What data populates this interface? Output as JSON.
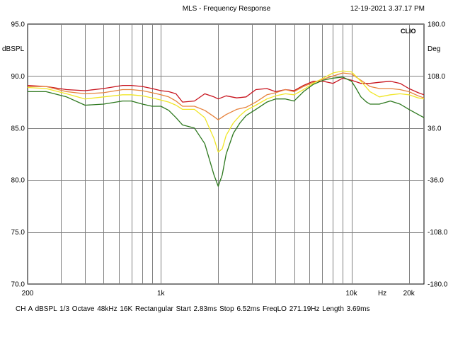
{
  "header": {
    "title": "MLS - Frequency Response",
    "timestamp": "12-19-2021 3.37.17 PM"
  },
  "brand": "CLIO",
  "footer": {
    "text": "CH A   dBSPL   1/3 Octave   48kHz   16K   Rectangular   Start 2.83ms     Stop 6.52ms    FreqLO 271.19Hz    Length 3.69ms"
  },
  "colors": {
    "background": "#ffffff",
    "grid": "#7f7f7f",
    "red": "#c8141e",
    "orange": "#e6823c",
    "yellow": "#f0e628",
    "green": "#2d781e"
  },
  "chart_data": {
    "type": "line",
    "title": "MLS - Frequency Response",
    "xlabel": "Hz",
    "ylabel": "dBSPL",
    "y2label": "Deg",
    "xscale": "log",
    "xlim": [
      200,
      24000
    ],
    "ylim": [
      70,
      95
    ],
    "y2lim": [
      -180,
      180
    ],
    "x_ticks": [
      {
        "value": 200,
        "label": "200"
      },
      {
        "value": 1000,
        "label": "1k"
      },
      {
        "value": 10000,
        "label": "10k"
      },
      {
        "value": 20000,
        "label": "20k"
      }
    ],
    "x_unit_label": "Hz",
    "y_ticks": [
      "95.0",
      "90.0",
      "85.0",
      "80.0",
      "75.0",
      "70.0"
    ],
    "y_tick_values": [
      95,
      90,
      85,
      80,
      75,
      70
    ],
    "y2_ticks": [
      "180.0",
      "108.0",
      "36.0",
      "-36.0",
      "-108.0",
      "-180.0"
    ],
    "grid": true,
    "series": [
      {
        "name": "red",
        "color": "#c8141e",
        "x": [
          200,
          250,
          320,
          400,
          500,
          630,
          700,
          800,
          900,
          1000,
          1100,
          1200,
          1300,
          1500,
          1700,
          1900,
          2000,
          2200,
          2500,
          2800,
          3150,
          3600,
          4000,
          4500,
          5000,
          5600,
          6300,
          7100,
          8000,
          9000,
          10000,
          11200,
          12500,
          14000,
          16000,
          18000,
          20000,
          22400,
          24000
        ],
        "y": [
          89.1,
          89.0,
          88.7,
          88.6,
          88.8,
          89.1,
          89.1,
          89.0,
          88.8,
          88.6,
          88.5,
          88.3,
          87.5,
          87.6,
          88.3,
          88.0,
          87.8,
          88.1,
          87.9,
          88.0,
          88.7,
          88.8,
          88.5,
          88.7,
          88.6,
          89.1,
          89.5,
          89.5,
          89.3,
          89.8,
          89.6,
          89.3,
          89.3,
          89.4,
          89.5,
          89.3,
          88.8,
          88.4,
          88.2
        ]
      },
      {
        "name": "orange",
        "color": "#e6823c",
        "x": [
          200,
          250,
          320,
          400,
          500,
          630,
          700,
          800,
          900,
          1000,
          1100,
          1200,
          1300,
          1500,
          1700,
          1900,
          2000,
          2200,
          2500,
          2800,
          3150,
          3600,
          4000,
          4500,
          5000,
          5600,
          6300,
          7100,
          8000,
          9000,
          10000,
          11200,
          12500,
          14000,
          16000,
          18000,
          20000,
          22400,
          24000
        ],
        "y": [
          89.0,
          89.0,
          88.5,
          88.3,
          88.4,
          88.7,
          88.7,
          88.6,
          88.4,
          88.2,
          88.0,
          87.6,
          87.1,
          87.1,
          86.7,
          86.1,
          85.8,
          86.3,
          86.8,
          87.0,
          87.5,
          88.2,
          88.4,
          88.7,
          88.5,
          89.0,
          89.4,
          89.7,
          90.0,
          90.3,
          90.2,
          89.6,
          89.0,
          88.8,
          88.8,
          88.7,
          88.5,
          88.1,
          87.9
        ]
      },
      {
        "name": "yellow",
        "color": "#f0e628",
        "x": [
          200,
          250,
          320,
          400,
          500,
          630,
          700,
          800,
          900,
          1000,
          1100,
          1200,
          1300,
          1500,
          1700,
          1900,
          2000,
          2100,
          2200,
          2400,
          2600,
          2800,
          3150,
          3600,
          4000,
          4500,
          5000,
          5600,
          6300,
          7100,
          8000,
          9000,
          10000,
          11200,
          12500,
          14000,
          16000,
          18000,
          20000,
          22400,
          24000
        ],
        "y": [
          88.9,
          88.8,
          88.3,
          87.8,
          88.0,
          88.2,
          88.2,
          88.1,
          87.9,
          87.7,
          87.5,
          87.2,
          86.8,
          86.8,
          86.0,
          84.0,
          82.7,
          83.0,
          84.3,
          85.5,
          86.2,
          86.7,
          87.2,
          87.8,
          88.1,
          88.3,
          88.2,
          88.7,
          89.3,
          89.8,
          90.3,
          90.5,
          90.4,
          89.5,
          88.5,
          88.0,
          88.2,
          88.3,
          88.2,
          87.9,
          87.8
        ]
      },
      {
        "name": "green",
        "color": "#2d781e",
        "x": [
          200,
          250,
          320,
          400,
          500,
          630,
          700,
          800,
          900,
          1000,
          1100,
          1200,
          1300,
          1500,
          1700,
          1900,
          2000,
          2100,
          2200,
          2400,
          2600,
          2800,
          3150,
          3600,
          4000,
          4500,
          5000,
          5600,
          6300,
          7100,
          8000,
          9000,
          10000,
          10500,
          11200,
          12000,
          12500,
          14000,
          16000,
          18000,
          20000,
          22400,
          24000
        ],
        "y": [
          88.5,
          88.5,
          88.0,
          87.2,
          87.3,
          87.6,
          87.6,
          87.3,
          87.1,
          87.1,
          86.7,
          86.0,
          85.3,
          85.0,
          83.5,
          80.5,
          79.4,
          80.5,
          82.5,
          84.5,
          85.5,
          86.2,
          86.8,
          87.5,
          87.8,
          87.8,
          87.6,
          88.5,
          89.2,
          89.6,
          89.8,
          89.9,
          89.5,
          88.9,
          88.0,
          87.5,
          87.3,
          87.3,
          87.6,
          87.3,
          86.8,
          86.3,
          86.0
        ]
      }
    ]
  }
}
